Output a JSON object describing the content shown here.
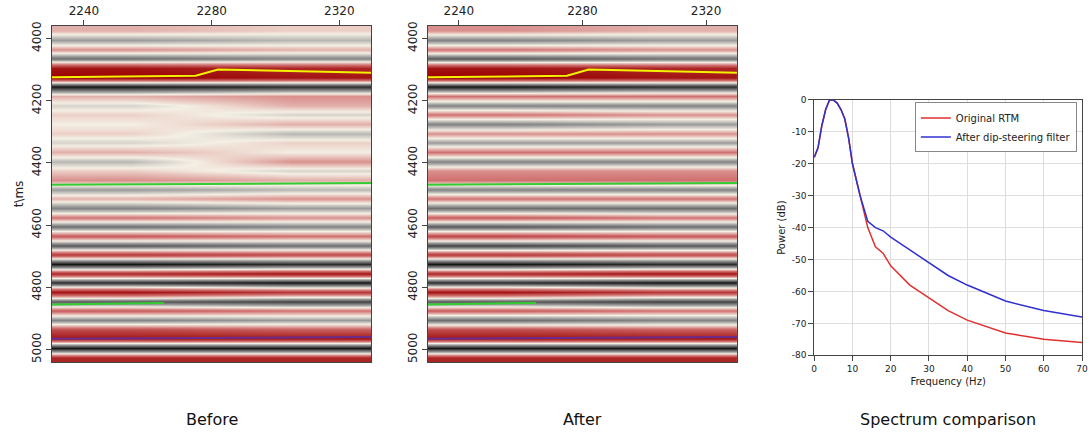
{
  "chart_data": [
    {
      "type": "heatmap",
      "caption": "Before",
      "y_label": "t\\ms",
      "xlim": [
        2230,
        2330
      ],
      "xticks": [
        2240,
        2280,
        2320
      ],
      "ylim": [
        5040,
        3960
      ],
      "yticks": [
        4000,
        4200,
        4400,
        4600,
        4800,
        5000
      ],
      "zlim": [
        -1,
        1
      ],
      "cell_x": [
        2230,
        2280,
        2330
      ],
      "cell_t": [
        3960,
        3990,
        4020,
        4050,
        4080,
        4110,
        4140,
        4170,
        4200,
        4230,
        4260,
        4290,
        4320,
        4350,
        4380,
        4410,
        4440,
        4470,
        4500,
        4530,
        4560,
        4590,
        4620,
        4650,
        4680,
        4710,
        4740,
        4770,
        4800,
        4830,
        4860,
        4890,
        4920,
        4950,
        4980,
        5010,
        5040
      ],
      "amplitude": [
        [
          0.2,
          0.1
        ],
        [
          -0.3,
          -0.2
        ],
        [
          0.3,
          0.2
        ],
        [
          -0.5,
          -0.4
        ],
        [
          0.9,
          0.8
        ],
        [
          1.0,
          0.9
        ],
        [
          -0.9,
          -0.8
        ],
        [
          0.2,
          0.3
        ],
        [
          -0.1,
          0.2
        ],
        [
          0.1,
          -0.1
        ],
        [
          0.0,
          0.2
        ],
        [
          0.1,
          -0.2
        ],
        [
          -0.1,
          0.1
        ],
        [
          0.2,
          0.0
        ],
        [
          -0.2,
          0.3
        ],
        [
          0.1,
          -0.1
        ],
        [
          0.3,
          0.2
        ],
        [
          -0.3,
          -0.2
        ],
        [
          0.2,
          0.3
        ],
        [
          -0.4,
          -0.3
        ],
        [
          0.4,
          0.3
        ],
        [
          -0.5,
          -0.4
        ],
        [
          0.5,
          0.4
        ],
        [
          -0.6,
          -0.5
        ],
        [
          0.7,
          0.6
        ],
        [
          -0.9,
          -0.8
        ],
        [
          0.8,
          0.9
        ],
        [
          -0.8,
          -0.9
        ],
        [
          0.9,
          0.7
        ],
        [
          -0.6,
          -0.7
        ],
        [
          0.5,
          0.4
        ],
        [
          -0.4,
          -0.3
        ],
        [
          0.6,
          0.5
        ],
        [
          0.9,
          0.9
        ],
        [
          -0.9,
          -0.9
        ],
        [
          0.8,
          0.8
        ]
      ],
      "series": [
        {
          "color": "#f2f200",
          "x": [
            2230,
            2275,
            2282,
            2330
          ],
          "values": [
            4125,
            4120,
            4100,
            4110
          ]
        },
        {
          "color": "#33cc33",
          "x": [
            2230,
            2330
          ],
          "values": [
            4470,
            4465
          ]
        },
        {
          "color": "#33cc33",
          "x": [
            2230,
            2265
          ],
          "values": [
            4855,
            4850
          ]
        },
        {
          "color": "#6a2c91",
          "x": [
            2230,
            2330
          ],
          "values": [
            4965,
            4960
          ]
        }
      ]
    },
    {
      "type": "heatmap",
      "caption": "After",
      "xlim": [
        2230,
        2330
      ],
      "xticks": [
        2240,
        2280,
        2320
      ],
      "ylim": [
        5040,
        3960
      ],
      "yticks": [
        4000,
        4200,
        4400,
        4600,
        4800,
        5000
      ],
      "zlim": [
        -1,
        1
      ],
      "cell_x": [
        2230,
        2280,
        2330
      ],
      "cell_t": [
        3960,
        3990,
        4020,
        4050,
        4080,
        4110,
        4140,
        4170,
        4200,
        4230,
        4260,
        4290,
        4320,
        4350,
        4380,
        4410,
        4440,
        4470,
        4500,
        4530,
        4560,
        4590,
        4620,
        4650,
        4680,
        4710,
        4740,
        4770,
        4800,
        4830,
        4860,
        4890,
        4920,
        4950,
        4980,
        5010,
        5040
      ],
      "amplitude": [
        [
          0.3,
          0.2
        ],
        [
          -0.4,
          -0.3
        ],
        [
          0.4,
          0.3
        ],
        [
          -0.6,
          -0.5
        ],
        [
          0.9,
          0.8
        ],
        [
          1.0,
          0.9
        ],
        [
          -0.9,
          -0.8
        ],
        [
          0.4,
          0.4
        ],
        [
          -0.4,
          -0.4
        ],
        [
          0.4,
          0.3
        ],
        [
          -0.4,
          -0.3
        ],
        [
          0.3,
          0.3
        ],
        [
          -0.3,
          -0.3
        ],
        [
          0.4,
          0.4
        ],
        [
          -0.4,
          -0.4
        ],
        [
          0.3,
          0.3
        ],
        [
          0.4,
          0.4
        ],
        [
          -0.4,
          -0.4
        ],
        [
          0.4,
          0.4
        ],
        [
          -0.5,
          -0.5
        ],
        [
          0.5,
          0.4
        ],
        [
          -0.6,
          -0.5
        ],
        [
          0.6,
          0.5
        ],
        [
          -0.7,
          -0.6
        ],
        [
          0.7,
          0.6
        ],
        [
          -0.9,
          -0.8
        ],
        [
          0.8,
          0.9
        ],
        [
          -0.8,
          -0.9
        ],
        [
          0.9,
          0.7
        ],
        [
          -0.6,
          -0.7
        ],
        [
          0.5,
          0.4
        ],
        [
          -0.5,
          -0.4
        ],
        [
          0.6,
          0.5
        ],
        [
          0.9,
          0.9
        ],
        [
          -0.9,
          -0.9
        ],
        [
          0.8,
          0.8
        ]
      ],
      "series": [
        {
          "color": "#f2f200",
          "x": [
            2230,
            2275,
            2282,
            2330
          ],
          "values": [
            4125,
            4120,
            4100,
            4110
          ]
        },
        {
          "color": "#33cc33",
          "x": [
            2230,
            2330
          ],
          "values": [
            4470,
            4465
          ]
        },
        {
          "color": "#33cc33",
          "x": [
            2230,
            2265
          ],
          "values": [
            4855,
            4850
          ]
        },
        {
          "color": "#6a2c91",
          "x": [
            2230,
            2330
          ],
          "values": [
            4965,
            4960
          ]
        }
      ]
    },
    {
      "type": "line",
      "caption": "Spectrum comparison",
      "x_label": "Frequency (Hz)",
      "y_label": "Power (dB)",
      "xlim": [
        0,
        70
      ],
      "xticks": [
        0,
        10,
        20,
        30,
        40,
        50,
        60,
        70
      ],
      "ylim": [
        -80,
        0
      ],
      "yticks": [
        -80,
        -70,
        -60,
        -50,
        -40,
        -30,
        -20,
        -10,
        0
      ],
      "grid": true,
      "legend": "top-right",
      "x": [
        0,
        1,
        2,
        3,
        4,
        5,
        6,
        7,
        8,
        9,
        10,
        12,
        14,
        16,
        18,
        20,
        25,
        30,
        35,
        40,
        50,
        60,
        70
      ],
      "series": [
        {
          "name": "Original RTM",
          "color": "#e03030",
          "values": [
            -18,
            -15,
            -8,
            -3,
            0,
            0,
            -1,
            -3,
            -6,
            -12,
            -20,
            -30,
            -40,
            -46,
            -48,
            -52,
            -58,
            -62,
            -66,
            -69,
            -73,
            -75,
            -76
          ]
        },
        {
          "name": "After dip-steering filter",
          "color": "#3030d0",
          "values": [
            -18,
            -15,
            -8,
            -3,
            0,
            0,
            -1,
            -3,
            -6,
            -12,
            -20,
            -30,
            -38,
            -40,
            -41,
            -43,
            -47,
            -51,
            -55,
            -58,
            -63,
            -66,
            -68
          ]
        }
      ]
    }
  ]
}
